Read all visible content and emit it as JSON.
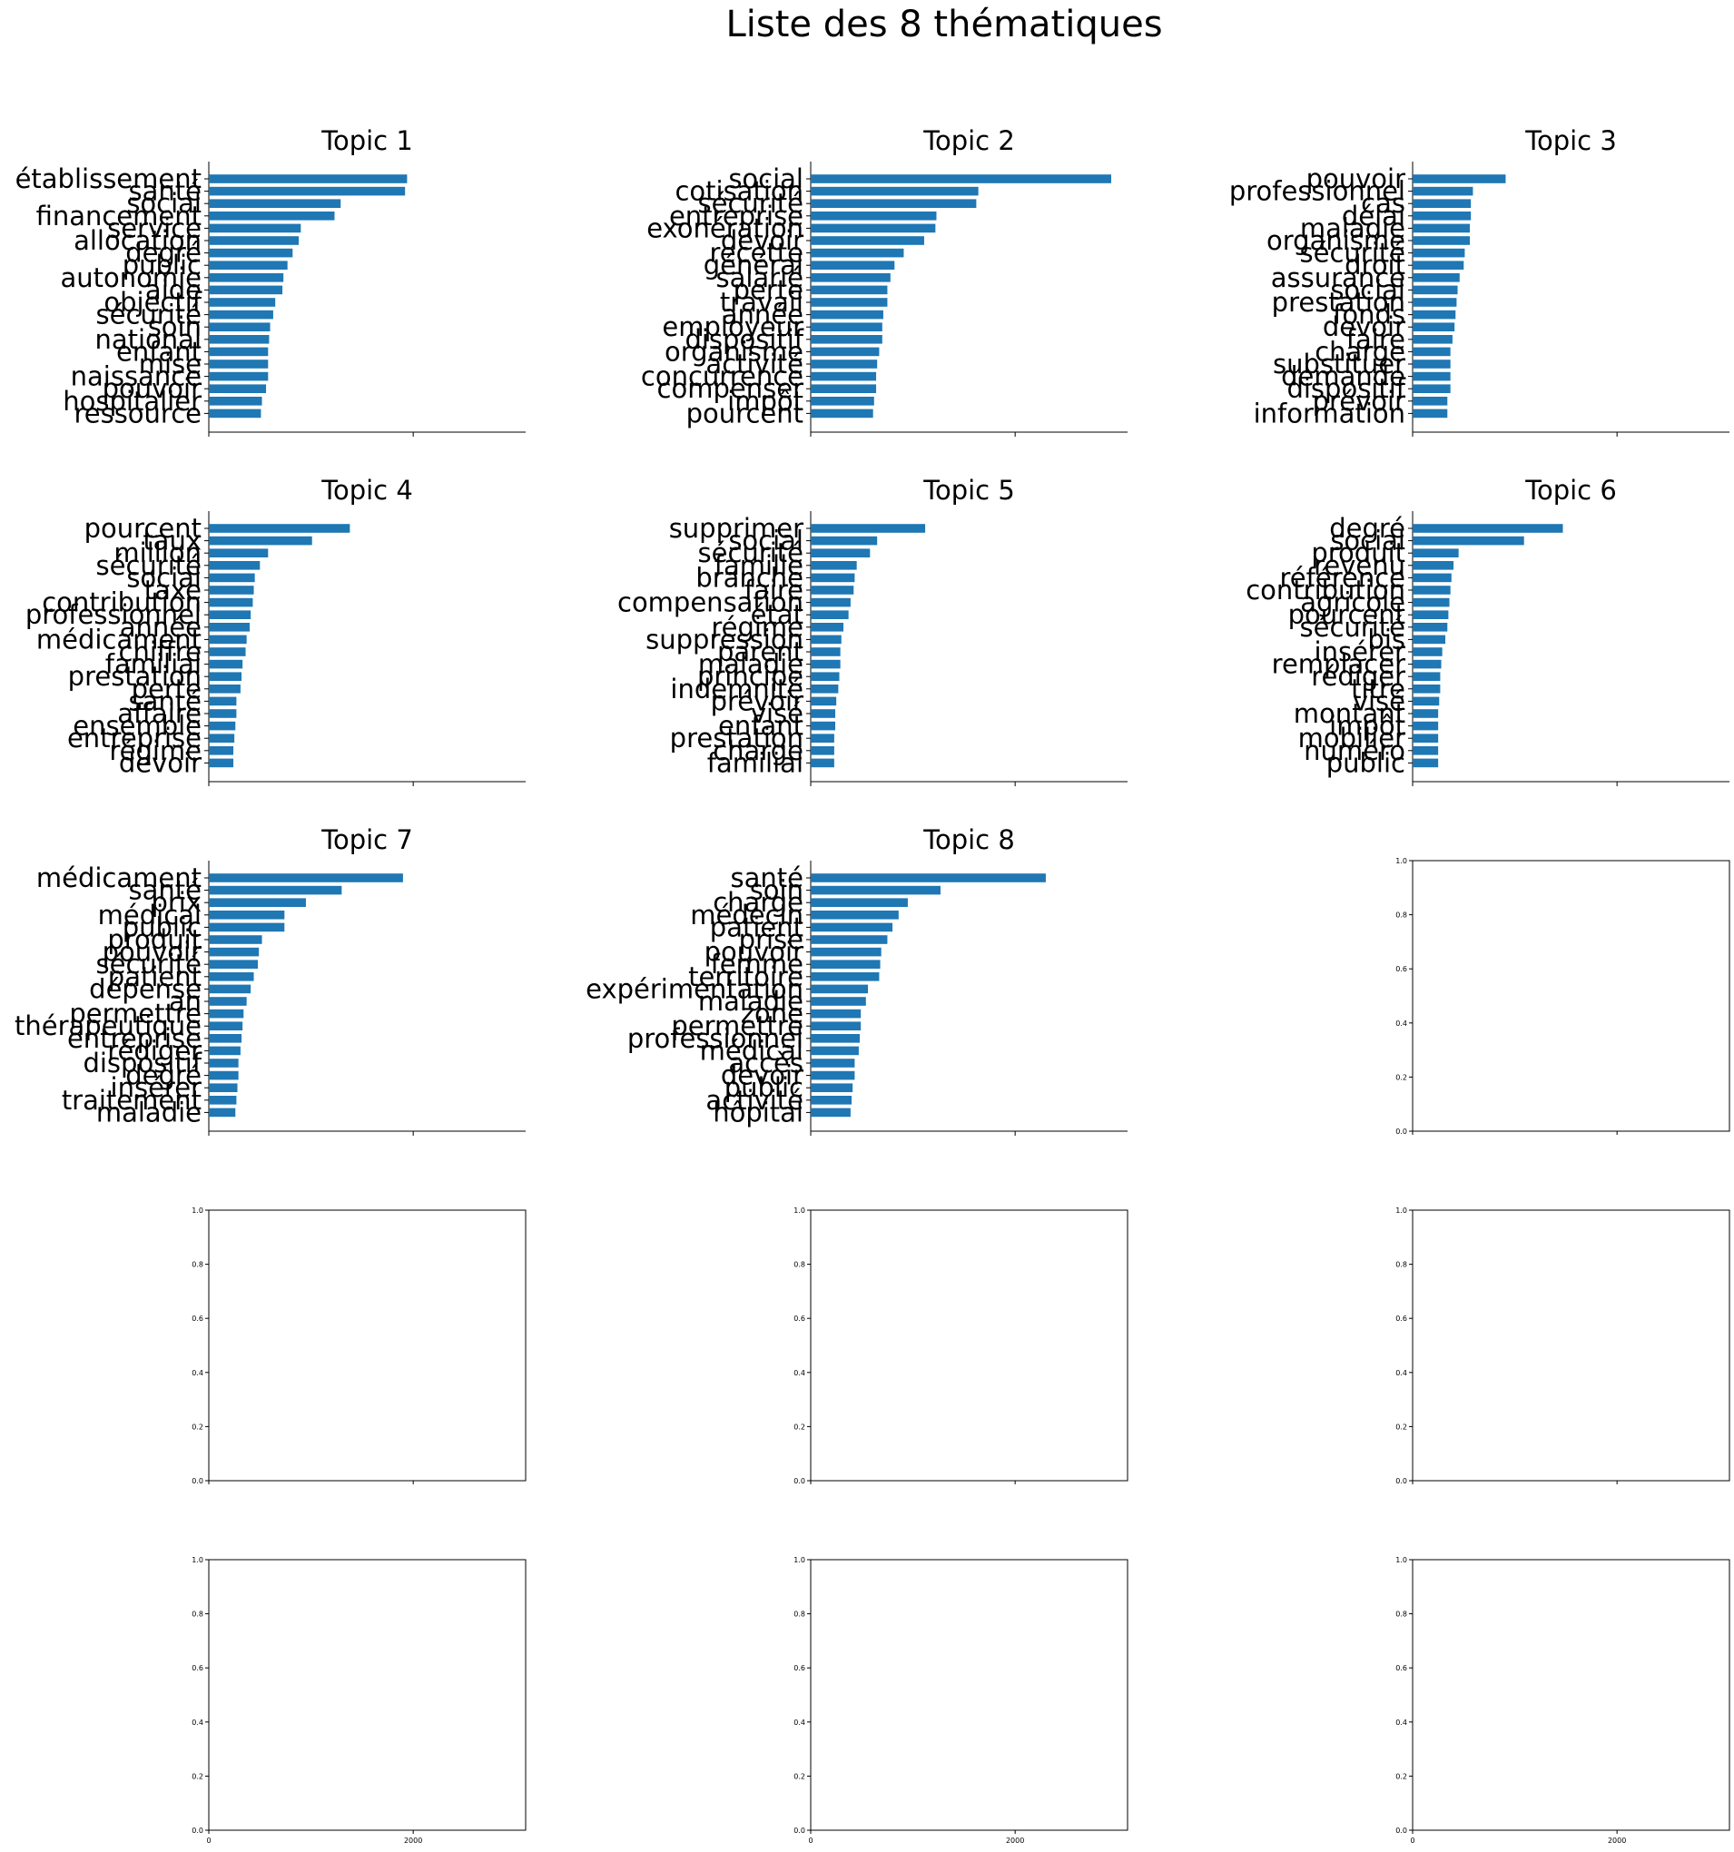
{
  "figure": {
    "suptitle": "Liste des 8 thématiques",
    "bar_color": "#1f77b4"
  },
  "chart_data": [
    {
      "type": "bar",
      "orientation": "horizontal",
      "title": "Topic 1",
      "xlim": [
        0,
        3100
      ],
      "categories": [
        "établissement",
        "santé",
        "social",
        "financement",
        "service",
        "allocation",
        "degré",
        "public",
        "autonomie",
        "aide",
        "objectif",
        "sécurité",
        "soin",
        "national",
        "enfant",
        "mise",
        "naissance",
        "pouvoir",
        "hospitalier",
        "ressource"
      ],
      "values": [
        1940,
        1920,
        1290,
        1230,
        900,
        880,
        820,
        770,
        730,
        720,
        650,
        630,
        600,
        590,
        580,
        580,
        580,
        560,
        520,
        510
      ]
    },
    {
      "type": "bar",
      "orientation": "horizontal",
      "title": "Topic 2",
      "xlim": [
        0,
        3100
      ],
      "categories": [
        "social",
        "cotisation",
        "sécurité",
        "entreprise",
        "exonération",
        "devoir",
        "recette",
        "général",
        "salarié",
        "perte",
        "travail",
        "année",
        "employeur",
        "dispositif",
        "organisme",
        "activité",
        "concurrence",
        "compenser",
        "impôt",
        "pourcent"
      ],
      "values": [
        2940,
        1640,
        1620,
        1230,
        1220,
        1110,
        910,
        820,
        780,
        750,
        750,
        710,
        700,
        700,
        670,
        650,
        640,
        640,
        620,
        610
      ]
    },
    {
      "type": "bar",
      "orientation": "horizontal",
      "title": "Topic 3",
      "xlim": [
        0,
        3100
      ],
      "categories": [
        "pouvoir",
        "professionnel",
        "cas",
        "délai",
        "maladie",
        "organisme",
        "sécurité",
        "droit",
        "assurance",
        "social",
        "prestation",
        "fonds",
        "devoir",
        "faire",
        "charge",
        "substituer",
        "demande",
        "dispositif",
        "prévoir",
        "information"
      ],
      "values": [
        910,
        590,
        570,
        570,
        560,
        560,
        510,
        500,
        460,
        440,
        430,
        420,
        410,
        390,
        370,
        370,
        370,
        370,
        340,
        340
      ]
    },
    {
      "type": "bar",
      "orientation": "horizontal",
      "title": "Topic 4",
      "xlim": [
        0,
        3100
      ],
      "categories": [
        "pourcent",
        "taux",
        "million",
        "sécurité",
        "social",
        "taxe",
        "contribution",
        "professionnel",
        "année",
        "médicament",
        "chiffre",
        "familial",
        "prestation",
        "perte",
        "santé",
        "affaire",
        "ensemble",
        "entreprise",
        "régime",
        "devoir"
      ],
      "values": [
        1380,
        1010,
        580,
        500,
        450,
        440,
        430,
        410,
        400,
        370,
        360,
        330,
        320,
        310,
        270,
        270,
        260,
        250,
        240,
        240
      ]
    },
    {
      "type": "bar",
      "orientation": "horizontal",
      "title": "Topic 5",
      "xlim": [
        0,
        3100
      ],
      "categories": [
        "supprimer",
        "social",
        "sécurité",
        "famille",
        "branche",
        "faire",
        "compensation",
        "état",
        "régime",
        "suppression",
        "parent",
        "maladie",
        "principe",
        "indemnité",
        "prévoir",
        "visé",
        "enfant",
        "prestation",
        "charge",
        "familial"
      ],
      "values": [
        1120,
        650,
        580,
        450,
        430,
        420,
        390,
        370,
        320,
        300,
        290,
        290,
        280,
        270,
        250,
        240,
        240,
        230,
        230,
        230
      ]
    },
    {
      "type": "bar",
      "orientation": "horizontal",
      "title": "Topic 6",
      "xlim": [
        0,
        3100
      ],
      "categories": [
        "degré",
        "social",
        "produit",
        "revenu",
        "référence",
        "contribution",
        "agricole",
        "pourcent",
        "sécurité",
        "bis",
        "insérer",
        "remplacer",
        "rédiger",
        "titre",
        "visé",
        "montant",
        "impôt",
        "mobilier",
        "numéro",
        "public"
      ],
      "values": [
        1470,
        1090,
        450,
        400,
        380,
        370,
        360,
        350,
        340,
        320,
        290,
        280,
        270,
        270,
        260,
        250,
        250,
        250,
        250,
        250
      ]
    },
    {
      "type": "bar",
      "orientation": "horizontal",
      "title": "Topic 7",
      "xlim": [
        0,
        3100
      ],
      "categories": [
        "médicament",
        "santé",
        "prix",
        "médical",
        "public",
        "produit",
        "pouvoir",
        "sécurité",
        "patient",
        "dépense",
        "an",
        "permettre",
        "thérapeutique",
        "entreprise",
        "rédiger",
        "dispositif",
        "degré",
        "insérer",
        "traitement",
        "maladie"
      ],
      "values": [
        1900,
        1300,
        950,
        740,
        740,
        520,
        490,
        480,
        440,
        410,
        370,
        340,
        330,
        320,
        310,
        290,
        290,
        280,
        270,
        260
      ]
    },
    {
      "type": "bar",
      "orientation": "horizontal",
      "title": "Topic 8",
      "xlim": [
        0,
        3100
      ],
      "categories": [
        "santé",
        "soin",
        "charge",
        "médecin",
        "patient",
        "prise",
        "pouvoir",
        "femme",
        "territoire",
        "expérimentation",
        "maladie",
        "zone",
        "permettre",
        "professionnel",
        "médical",
        "accès",
        "devoir",
        "public",
        "activité",
        "hôpital"
      ],
      "values": [
        2300,
        1270,
        950,
        860,
        800,
        750,
        690,
        680,
        670,
        560,
        540,
        490,
        490,
        480,
        470,
        430,
        430,
        410,
        400,
        390
      ]
    },
    {
      "type": "empty",
      "xlim": [
        0,
        3100
      ],
      "ylim": [
        0,
        1
      ],
      "yticks": [
        "0.0",
        "0.2",
        "0.4",
        "0.6",
        "0.8",
        "1.0"
      ],
      "xticks": []
    },
    {
      "type": "empty",
      "xlim": [
        0,
        3100
      ],
      "ylim": [
        0,
        1
      ],
      "yticks": [
        "0.0",
        "0.2",
        "0.4",
        "0.6",
        "0.8",
        "1.0"
      ],
      "xticks": []
    },
    {
      "type": "empty",
      "xlim": [
        0,
        3100
      ],
      "ylim": [
        0,
        1
      ],
      "yticks": [
        "0.0",
        "0.2",
        "0.4",
        "0.6",
        "0.8",
        "1.0"
      ],
      "xticks": []
    },
    {
      "type": "empty",
      "xlim": [
        0,
        3100
      ],
      "ylim": [
        0,
        1
      ],
      "yticks": [
        "0.0",
        "0.2",
        "0.4",
        "0.6",
        "0.8",
        "1.0"
      ],
      "xticks": []
    },
    {
      "type": "empty",
      "xlim": [
        0,
        3100
      ],
      "ylim": [
        0,
        1
      ],
      "yticks": [
        "0.0",
        "0.2",
        "0.4",
        "0.6",
        "0.8",
        "1.0"
      ],
      "xticks": [
        "0",
        "2000"
      ]
    },
    {
      "type": "empty",
      "xlim": [
        0,
        3100
      ],
      "ylim": [
        0,
        1
      ],
      "yticks": [
        "0.0",
        "0.2",
        "0.4",
        "0.6",
        "0.8",
        "1.0"
      ],
      "xticks": [
        "0",
        "2000"
      ]
    },
    {
      "type": "empty",
      "xlim": [
        0,
        3100
      ],
      "ylim": [
        0,
        1
      ],
      "yticks": [
        "0.0",
        "0.2",
        "0.4",
        "0.6",
        "0.8",
        "1.0"
      ],
      "xticks": [
        "0",
        "2000"
      ]
    }
  ]
}
